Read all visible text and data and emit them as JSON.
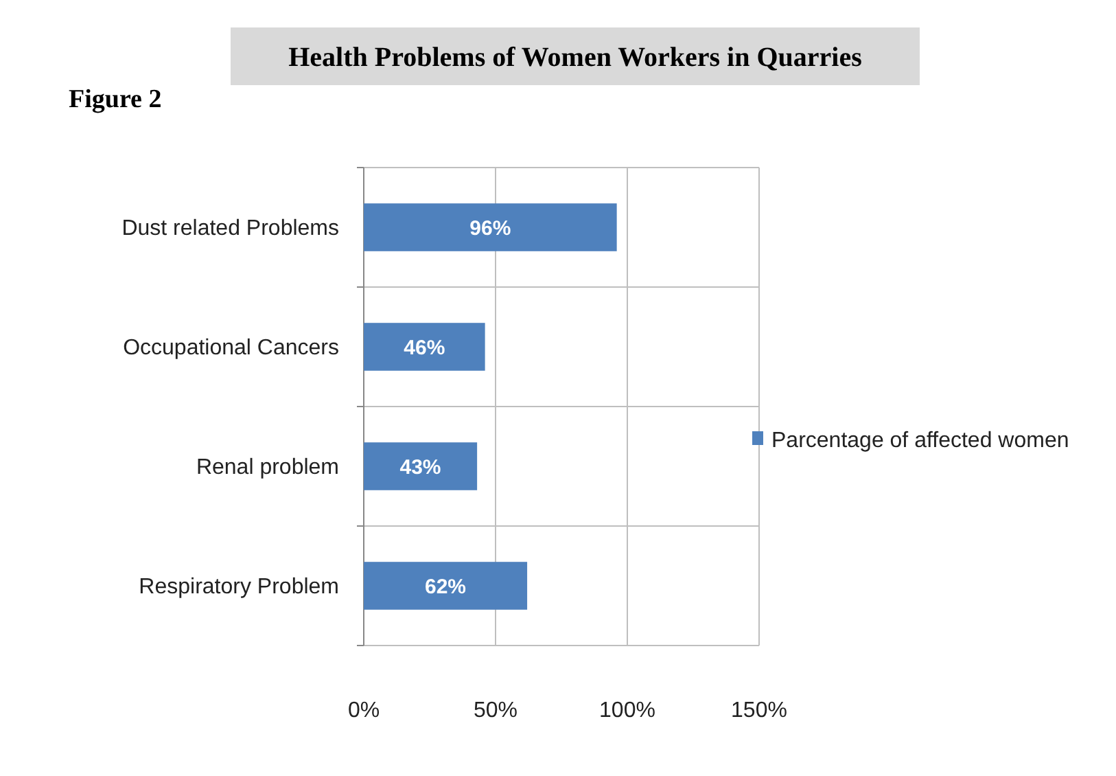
{
  "chart_data": {
    "type": "bar",
    "orientation": "horizontal",
    "title": "Health Problems of Women Workers in Quarries",
    "annotations": [
      "Figure 2"
    ],
    "categories": [
      "Dust related Problems",
      "Occupational Cancers",
      "Renal  problem",
      "Respiratory Problem"
    ],
    "series": [
      {
        "name": "Parcentage of affected women",
        "color": "#4f81bd",
        "values": [
          96,
          46,
          43,
          62
        ],
        "value_labels": [
          "96%",
          "46%",
          "43%",
          "62%"
        ]
      }
    ],
    "xlim": [
      0,
      150
    ],
    "xticks": [
      {
        "value": 0,
        "label": "0%"
      },
      {
        "value": 50,
        "label": "50%"
      },
      {
        "value": 100,
        "label": "100%"
      },
      {
        "value": 150,
        "label": "150%"
      }
    ],
    "grid": true,
    "legend": "right"
  }
}
